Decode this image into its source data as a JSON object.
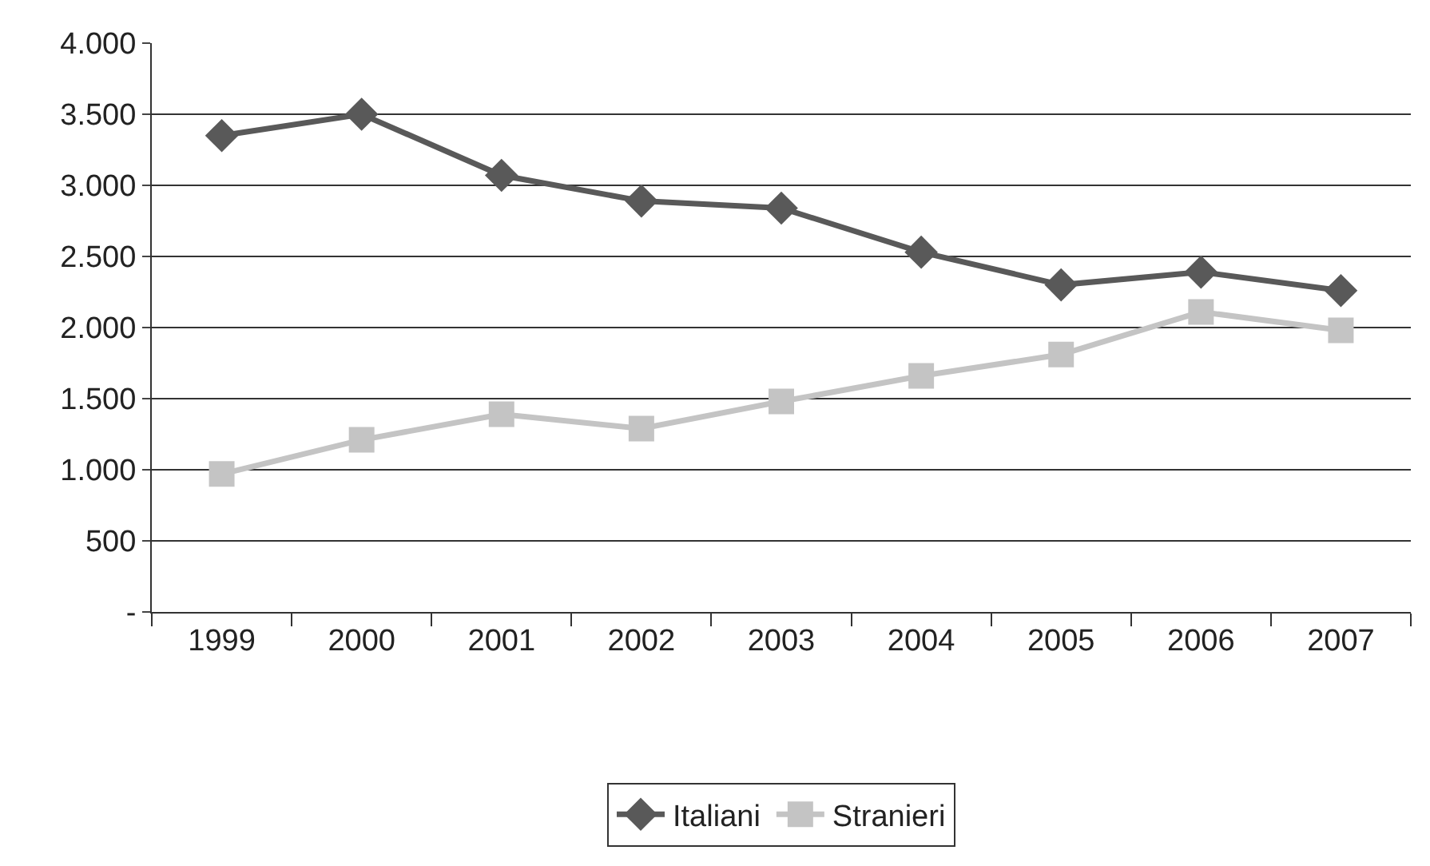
{
  "chart_data": {
    "type": "line",
    "categories": [
      "1999",
      "2000",
      "2001",
      "2002",
      "2003",
      "2004",
      "2005",
      "2006",
      "2007"
    ],
    "series": [
      {
        "name": "Italiani",
        "color": "#595959",
        "marker": "diamond",
        "values": [
          3350,
          3500,
          3070,
          2890,
          2840,
          2530,
          2300,
          2390,
          2260
        ]
      },
      {
        "name": "Stranieri",
        "color": "#c4c4c4",
        "marker": "square",
        "values": [
          970,
          1210,
          1390,
          1290,
          1480,
          1660,
          1810,
          2110,
          1980
        ]
      }
    ],
    "ylim": [
      0,
      4000
    ],
    "yticks": [
      {
        "value": 0,
        "label": "-"
      },
      {
        "value": 500,
        "label": "500"
      },
      {
        "value": 1000,
        "label": "1.000"
      },
      {
        "value": 1500,
        "label": "1.500"
      },
      {
        "value": 2000,
        "label": "2.000"
      },
      {
        "value": 2500,
        "label": "2.500"
      },
      {
        "value": 3000,
        "label": "3.000"
      },
      {
        "value": 3500,
        "label": "3.500"
      },
      {
        "value": 4000,
        "label": "4.000"
      }
    ],
    "grid": "y",
    "legend": "bottom",
    "line_style": "solid"
  }
}
